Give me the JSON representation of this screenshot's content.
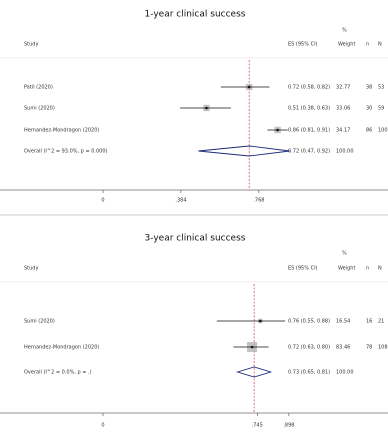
{
  "chart_data": [
    {
      "type": "forest",
      "title": "1-year clinical success",
      "study_header": "Study",
      "columns": [
        "ES (95% CI)",
        "Weight",
        "n",
        "N"
      ],
      "weight_unit": "%",
      "categories": [
        "Patil (2020)",
        "Sumi (2020)",
        "Hernandez-Mondragon (2020)",
        "Overall  (I^2 = 93.0%, p = 0.000)"
      ],
      "values": [
        0.72,
        0.51,
        0.86,
        0.72
      ],
      "ci_low": [
        0.58,
        0.38,
        0.81,
        0.47
      ],
      "ci_high": [
        0.82,
        0.63,
        0.91,
        0.92
      ],
      "value_labels": [
        "0.72 (0.58, 0.82)",
        "0.51 (0.38, 0.63)",
        "0.86 (0.81, 0.91)",
        "0.72 (0.47, 0.92)"
      ],
      "weights": [
        32.77,
        33.06,
        34.17,
        100
      ],
      "weight_labels": [
        "32.77",
        "33.06",
        "34.17",
        "100.00"
      ],
      "n": [
        38,
        30,
        86,
        null
      ],
      "N": [
        53,
        59,
        100,
        null
      ],
      "xlim": [
        0,
        1
      ],
      "xticks": [
        0,
        {
          "value": 0.384,
          "label": ".384"
        },
        {
          "value": 0.768,
          "label": ".768"
        }
      ]
    },
    {
      "type": "forest",
      "title": "3-year clinical success",
      "study_header": "Study",
      "columns": [
        "ES (95% CI)",
        "Weight",
        "n",
        "N"
      ],
      "weight_unit": "%",
      "categories": [
        "Sumi (2020)",
        "Hernandez-Mondragon (2020)",
        "Overall  (I^2 = 0.0%, p = .)"
      ],
      "values": [
        0.76,
        0.72,
        0.73
      ],
      "ci_low": [
        0.55,
        0.63,
        0.65
      ],
      "ci_high": [
        0.88,
        0.8,
        0.81
      ],
      "value_labels": [
        "0.76 (0.55, 0.88)",
        "0.72 (0.63, 0.80)",
        "0.73 (0.65, 0.81)"
      ],
      "weights": [
        16.54,
        83.46,
        100
      ],
      "weight_labels": [
        "16.54",
        "83.46",
        "100.00"
      ],
      "n": [
        16,
        78,
        null
      ],
      "N": [
        21,
        108,
        null
      ],
      "xlim": [
        0,
        1
      ],
      "xticks": [
        0,
        {
          "value": 0.745,
          "label": ".745"
        },
        {
          "value": 0.898,
          "label": ".898"
        }
      ]
    }
  ]
}
